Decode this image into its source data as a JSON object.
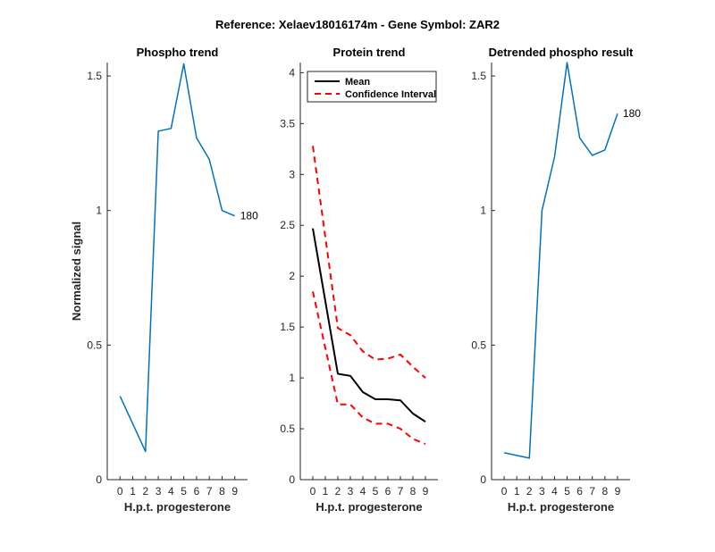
{
  "suptitle": "Reference:  Xelaev18016174m - Gene Symbol:  ZAR2",
  "colors": {
    "phospho": "#0072BD",
    "mean": "#000000",
    "ci": "#FF0000"
  },
  "chart_data": [
    {
      "type": "line",
      "title": "Phospho trend",
      "xlabel": "H.p.t. progesterone",
      "ylabel": "Normalized signal",
      "xlim": [
        -1,
        10
      ],
      "ylim": [
        0,
        1.55
      ],
      "xticks": [
        0,
        1,
        2,
        3,
        4,
        5,
        6,
        7,
        8,
        9
      ],
      "yticks": [
        0,
        0.5,
        1,
        1.5
      ],
      "ytick_labels": [
        "0",
        "0.5",
        "1",
        "1.5"
      ],
      "series": [
        {
          "name": "phospho",
          "x": [
            0,
            2,
            3,
            4,
            5,
            6,
            7,
            8,
            9
          ],
          "values": [
            0.31,
            0.105,
            1.295,
            1.305,
            1.545,
            1.27,
            1.19,
            1.0,
            0.98
          ]
        }
      ],
      "annotation": {
        "text": "180",
        "x": 9,
        "y": 0.98
      }
    },
    {
      "type": "line",
      "title": "Protein trend",
      "xlabel": "H.p.t. progesterone",
      "ylabel": "",
      "xlim": [
        -1,
        10
      ],
      "ylim": [
        0,
        4.1
      ],
      "xticks": [
        0,
        1,
        2,
        3,
        4,
        5,
        6,
        7,
        8,
        9
      ],
      "yticks": [
        0,
        0.5,
        1,
        1.5,
        2,
        2.5,
        3,
        3.5,
        4
      ],
      "ytick_labels": [
        "0",
        "0.5",
        "1",
        "1.5",
        "2",
        "2.5",
        "3",
        "3.5",
        "4"
      ],
      "series": [
        {
          "name": "Mean",
          "x": [
            0,
            2,
            3,
            4,
            5,
            6,
            7,
            8,
            9
          ],
          "values": [
            2.47,
            1.04,
            1.02,
            0.86,
            0.79,
            0.79,
            0.78,
            0.65,
            0.57
          ]
        },
        {
          "name": "Confidence Interval (upper)",
          "x": [
            0,
            2,
            3,
            4,
            5,
            6,
            7,
            8,
            9
          ],
          "values": [
            3.28,
            1.49,
            1.42,
            1.26,
            1.18,
            1.19,
            1.23,
            1.11,
            1.0
          ]
        },
        {
          "name": "Confidence Interval (lower)",
          "x": [
            0,
            2,
            3,
            4,
            5,
            6,
            7,
            8,
            9
          ],
          "values": [
            1.85,
            0.74,
            0.74,
            0.61,
            0.55,
            0.55,
            0.5,
            0.4,
            0.35
          ]
        }
      ],
      "legend": {
        "position": "top-right",
        "entries": [
          "Mean",
          "Confidence Interval"
        ]
      }
    },
    {
      "type": "line",
      "title": "Detrended phospho result",
      "xlabel": "H.p.t. progesterone",
      "ylabel": "",
      "xlim": [
        -1,
        10
      ],
      "ylim": [
        0,
        1.55
      ],
      "xticks": [
        0,
        1,
        2,
        3,
        4,
        5,
        6,
        7,
        8,
        9
      ],
      "yticks": [
        0,
        0.5,
        1,
        1.5
      ],
      "ytick_labels": [
        "0",
        "0.5",
        "1",
        "1.5"
      ],
      "series": [
        {
          "name": "detrended",
          "x": [
            0,
            2,
            3,
            4,
            5,
            6,
            7,
            8,
            9
          ],
          "values": [
            0.1,
            0.08,
            1.0,
            1.2,
            1.55,
            1.27,
            1.205,
            1.225,
            1.36
          ]
        }
      ],
      "annotation": {
        "text": "180",
        "x": 9,
        "y": 1.36
      }
    }
  ]
}
